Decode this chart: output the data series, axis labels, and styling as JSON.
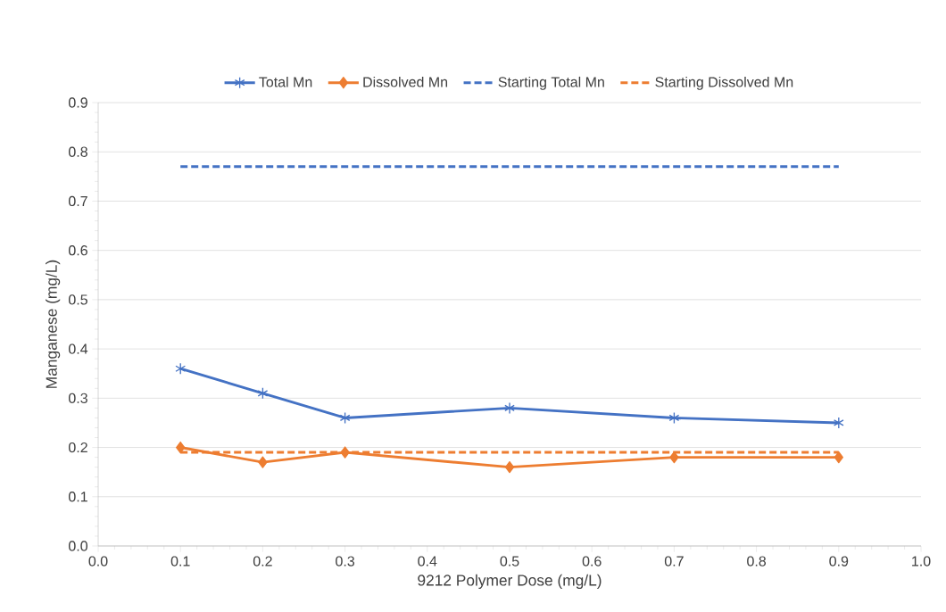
{
  "chart_data": {
    "type": "line",
    "xlabel": "9212 Polymer Dose (mg/L)",
    "ylabel": "Manganese (mg/L)",
    "x": [
      0.1,
      0.2,
      0.3,
      0.5,
      0.7,
      0.9
    ],
    "series": [
      {
        "name": "Total Mn",
        "color": "#4472c4",
        "values": [
          0.36,
          0.31,
          0.26,
          0.28,
          0.26,
          0.25
        ],
        "marker": "cross",
        "line_style": "solid"
      },
      {
        "name": "Dissolved Mn",
        "color": "#ed7d31",
        "values": [
          0.2,
          0.17,
          0.19,
          0.16,
          0.18,
          0.18
        ],
        "marker": "diamond",
        "line_style": "solid"
      },
      {
        "name": "Starting Total Mn",
        "color": "#4472c4",
        "values": [
          0.77,
          0.77,
          0.77,
          0.77,
          0.77,
          0.77
        ],
        "marker": "none",
        "line_style": "dashed"
      },
      {
        "name": "Starting Dissolved Mn",
        "color": "#ed7d31",
        "values": [
          0.19,
          0.19,
          0.19,
          0.19,
          0.19,
          0.19
        ],
        "marker": "none",
        "line_style": "dashed"
      }
    ],
    "xlim": [
      0,
      1
    ],
    "ylim": [
      0,
      0.9
    ],
    "xticks": [
      {
        "value": 0,
        "label": "0.0"
      },
      {
        "value": 0.1,
        "label": "0.1"
      },
      {
        "value": 0.2,
        "label": "0.2"
      },
      {
        "value": 0.3,
        "label": "0.3"
      },
      {
        "value": 0.4,
        "label": "0.4"
      },
      {
        "value": 0.5,
        "label": "0.5"
      },
      {
        "value": 0.6,
        "label": "0.6"
      },
      {
        "value": 0.7,
        "label": "0.7"
      },
      {
        "value": 0.8,
        "label": "0.8"
      },
      {
        "value": 0.9,
        "label": "0.9"
      },
      {
        "value": 1,
        "label": "1.0"
      }
    ],
    "yticks": [
      {
        "value": 0,
        "label": "0.0"
      },
      {
        "value": 0.1,
        "label": "0.1"
      },
      {
        "value": 0.2,
        "label": "0.2"
      },
      {
        "value": 0.3,
        "label": "0.3"
      },
      {
        "value": 0.4,
        "label": "0.4"
      },
      {
        "value": 0.5,
        "label": "0.5"
      },
      {
        "value": 0.6,
        "label": "0.6"
      },
      {
        "value": 0.7,
        "label": "0.7"
      },
      {
        "value": 0.8,
        "label": "0.8"
      },
      {
        "value": 0.9,
        "label": "0.9"
      }
    ],
    "grid": "y",
    "legend": "top"
  }
}
